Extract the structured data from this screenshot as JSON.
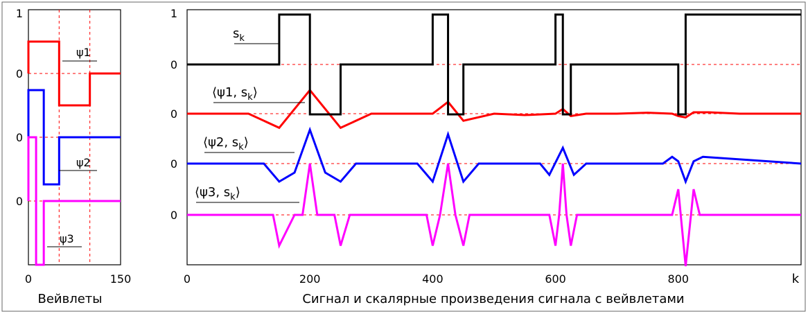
{
  "chart_data": [
    {
      "type": "line",
      "xlabel": "Вейвлеты",
      "xlim": [
        0,
        150
      ],
      "x_ticks": [
        "0",
        "150"
      ],
      "y_ticks": [
        "1",
        "0",
        "0",
        "0"
      ],
      "grid": "dashed red",
      "series": [
        {
          "name": "ψ1",
          "color": "#ff0000",
          "x": [
            0,
            0,
            50,
            50,
            100,
            100,
            150
          ],
          "y": [
            0,
            1,
            1,
            -1,
            -1,
            0,
            0
          ]
        },
        {
          "name": "ψ2",
          "color": "#0000ff",
          "x": [
            0,
            0,
            25,
            25,
            50,
            50,
            150
          ],
          "y": [
            0,
            1,
            1,
            -1,
            -1,
            0,
            0
          ]
        },
        {
          "name": "ψ3",
          "color": "#ff00ff",
          "x": [
            0,
            0,
            12.5,
            12.5,
            25,
            25,
            150
          ],
          "y": [
            0,
            1,
            1,
            -1,
            -1,
            0,
            0
          ]
        }
      ]
    },
    {
      "type": "line",
      "xlabel": "Сигнал и скалярные произведения сигнала с вейвлетами",
      "x_axis_label": "k",
      "xlim": [
        0,
        1000
      ],
      "x_ticks": [
        "0",
        "200",
        "400",
        "600",
        "800"
      ],
      "y_ticks": [
        "1",
        "0",
        "0",
        "0",
        "0"
      ],
      "grid": "dashed red",
      "series": [
        {
          "name": "s_k",
          "color": "#000000",
          "x": [
            0,
            150,
            150,
            200,
            200,
            250,
            250,
            400,
            400,
            425,
            425,
            450,
            450,
            600,
            600,
            612,
            612,
            625,
            625,
            800,
            800,
            812,
            812,
            1000
          ],
          "y": [
            0,
            0,
            1,
            1,
            -1,
            -1,
            0,
            0,
            1,
            1,
            -1,
            -1,
            0,
            0,
            1,
            1,
            -1,
            -1,
            0,
            0,
            -1,
            -1,
            1,
            1
          ]
        },
        {
          "name": "⟨ψ1, s_k⟩",
          "color": "#ff0000",
          "x": [
            0,
            100,
            150,
            200,
            250,
            300,
            350,
            400,
            425,
            450,
            500,
            550,
            600,
            612,
            625,
            650,
            700,
            750,
            790,
            800,
            812,
            825,
            850,
            900,
            1000
          ],
          "y": [
            0,
            0,
            -0.3,
            0.5,
            -0.3,
            0,
            0,
            0,
            0.25,
            -0.15,
            0,
            -0.03,
            0,
            0.1,
            -0.05,
            0,
            0,
            0.02,
            0,
            -0.05,
            -0.08,
            0.03,
            0.03,
            0,
            0
          ]
        },
        {
          "name": "⟨ψ2, s_k⟩",
          "color": "#0000ff",
          "x": [
            0,
            125,
            150,
            175,
            200,
            225,
            250,
            275,
            375,
            400,
            425,
            450,
            475,
            575,
            590,
            612,
            630,
            650,
            775,
            790,
            800,
            812,
            825,
            840,
            1000
          ],
          "y": [
            0,
            0,
            -0.4,
            -0.2,
            0.75,
            -0.2,
            -0.4,
            0,
            0,
            -0.4,
            0.65,
            -0.4,
            0,
            0,
            -0.25,
            0.35,
            -0.25,
            0,
            0,
            0.15,
            0.05,
            -0.4,
            0.05,
            0.15,
            0
          ]
        },
        {
          "name": "⟨ψ3, s_k⟩",
          "color": "#ff00ff",
          "x": [
            0,
            140,
            150,
            175,
            188,
            200,
            212,
            225,
            240,
            250,
            265,
            390,
            400,
            412,
            425,
            437,
            450,
            460,
            590,
            600,
            606,
            612,
            618,
            625,
            635,
            790,
            800,
            812,
            825,
            835,
            1000
          ],
          "y": [
            0,
            0,
            -0.6,
            0,
            0,
            1,
            0,
            0,
            0,
            -0.6,
            0,
            0,
            -0.6,
            0,
            1,
            0,
            -0.6,
            0,
            0,
            -0.6,
            0,
            1,
            0,
            -0.6,
            0,
            0,
            0.5,
            -1,
            0.5,
            0,
            0
          ]
        }
      ]
    }
  ],
  "labels": {
    "psi1": "ψ1",
    "psi2": "ψ2",
    "psi3": "ψ3",
    "sk_main": "s",
    "sk_sub": "k",
    "ip1_prefix": "⟨ψ1, s",
    "ip2_prefix": "⟨ψ2, s",
    "ip3_prefix": "⟨ψ3, s",
    "ip_sub": "k",
    "ip_close": "⟩"
  }
}
